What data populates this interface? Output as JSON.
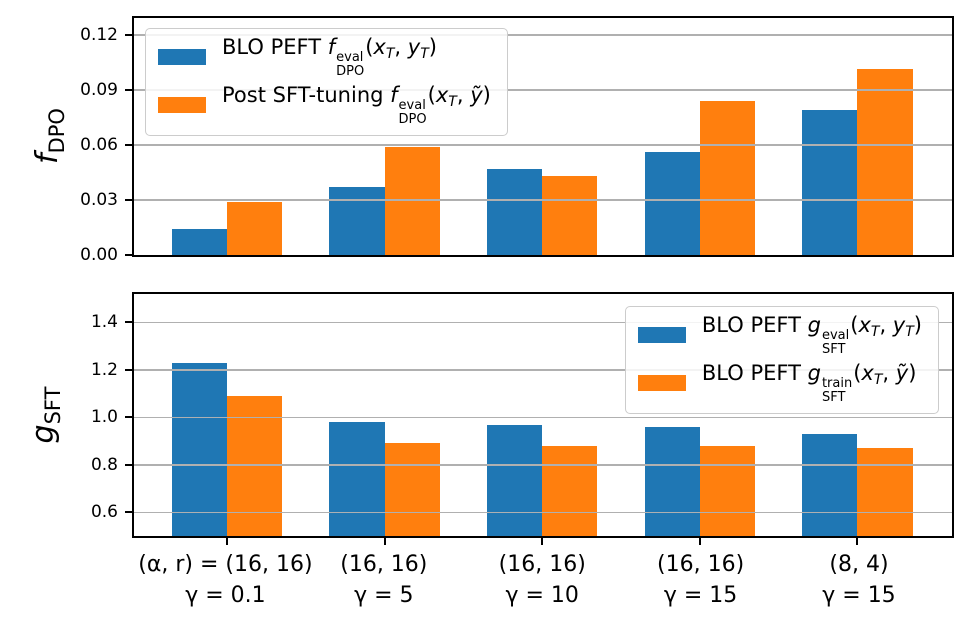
{
  "colors": {
    "series_blue": "#1f77b4",
    "series_orange": "#ff7f0e",
    "gridline": "#b0b0b0",
    "spine": "#000000",
    "legend_border": "#cccccc"
  },
  "categories": [
    {
      "line1": "(α, r) = (16, 16)",
      "line2": "γ = 0.1"
    },
    {
      "line1": "(16, 16)",
      "line2": "γ = 5"
    },
    {
      "line1": "(16, 16)",
      "line2": "γ = 10"
    },
    {
      "line1": "(16, 16)",
      "line2": "γ = 15"
    },
    {
      "line1": "(8, 4)",
      "line2": "γ = 15"
    }
  ],
  "chart_data": [
    {
      "type": "bar",
      "dom": "fdpo",
      "title": "",
      "ylabel": {
        "sym": "f",
        "sub": "DPO"
      },
      "ylim": [
        0,
        0.129
      ],
      "xlim": [
        -0.59,
        4.6
      ],
      "bar_width": 0.35,
      "grid": true,
      "show_xticks": false,
      "yticks": [
        {
          "v": 0.0,
          "label": "0.00"
        },
        {
          "v": 0.03,
          "label": "0.03"
        },
        {
          "v": 0.06,
          "label": "0.06"
        },
        {
          "v": 0.09,
          "label": "0.09"
        },
        {
          "v": 0.12,
          "label": "0.12"
        }
      ],
      "series": [
        {
          "name": "BLO PEFT f_DPO^eval(x_T, y_T)",
          "color": "#1f77b4",
          "values": [
            0.014,
            0.037,
            0.047,
            0.056,
            0.079
          ]
        },
        {
          "name": "Post SFT-tuning f_DPO^eval(x_T, ỹ)",
          "color": "#ff7f0e",
          "values": [
            0.029,
            0.059,
            0.043,
            0.084,
            0.101
          ]
        }
      ],
      "legend": {
        "position": "upper-left",
        "rows": [
          {
            "color": "#1f77b4",
            "tokens": [
              {
                "t": "text",
                "v": "BLO PEFT "
              },
              {
                "t": "i",
                "v": "f"
              },
              {
                "t": "stack",
                "sup": "eval",
                "sub": "DPO"
              },
              {
                "t": "text",
                "v": "("
              },
              {
                "t": "isub",
                "main": "x",
                "sub": "T"
              },
              {
                "t": "text",
                "v": ", "
              },
              {
                "t": "isub",
                "main": "y",
                "sub": "T"
              },
              {
                "t": "text",
                "v": ")"
              }
            ]
          },
          {
            "color": "#ff7f0e",
            "tokens": [
              {
                "t": "text",
                "v": "Post SFT-tuning "
              },
              {
                "t": "i",
                "v": "f"
              },
              {
                "t": "stack",
                "sup": "eval",
                "sub": "DPO"
              },
              {
                "t": "text",
                "v": "("
              },
              {
                "t": "isub",
                "main": "x",
                "sub": "T"
              },
              {
                "t": "text",
                "v": ", "
              },
              {
                "t": "isub",
                "main": "ỹ",
                "sub": ""
              },
              {
                "t": "text",
                "v": ")"
              }
            ]
          }
        ]
      }
    },
    {
      "type": "bar",
      "dom": "gsft",
      "title": "",
      "ylabel": {
        "sym": "g",
        "sub": "SFT"
      },
      "ylim": [
        0.5,
        1.52
      ],
      "xlim": [
        -0.59,
        4.6
      ],
      "bar_width": 0.35,
      "grid": true,
      "show_xticks": true,
      "yticks": [
        {
          "v": 0.6,
          "label": "0.6"
        },
        {
          "v": 0.8,
          "label": "0.8"
        },
        {
          "v": 1.0,
          "label": "1.0"
        },
        {
          "v": 1.2,
          "label": "1.2"
        },
        {
          "v": 1.4,
          "label": "1.4"
        }
      ],
      "series": [
        {
          "name": "BLO PEFT g_SFT^eval(x_T, y_T)",
          "color": "#1f77b4",
          "values": [
            1.23,
            0.98,
            0.97,
            0.96,
            0.93
          ]
        },
        {
          "name": "BLO PEFT g_SFT^train(x_T, ỹ)",
          "color": "#ff7f0e",
          "values": [
            1.09,
            0.89,
            0.88,
            0.88,
            0.87
          ]
        }
      ],
      "legend": {
        "position": "upper-right",
        "rows": [
          {
            "color": "#1f77b4",
            "tokens": [
              {
                "t": "text",
                "v": "BLO PEFT "
              },
              {
                "t": "i",
                "v": "g"
              },
              {
                "t": "stack",
                "sup": "eval",
                "sub": "SFT"
              },
              {
                "t": "text",
                "v": "("
              },
              {
                "t": "isub",
                "main": "x",
                "sub": "T"
              },
              {
                "t": "text",
                "v": ", "
              },
              {
                "t": "isub",
                "main": "y",
                "sub": "T"
              },
              {
                "t": "text",
                "v": ")"
              }
            ]
          },
          {
            "color": "#ff7f0e",
            "tokens": [
              {
                "t": "text",
                "v": "BLO PEFT "
              },
              {
                "t": "i",
                "v": "g"
              },
              {
                "t": "stack",
                "sup": "train",
                "sub": "SFT"
              },
              {
                "t": "text",
                "v": "("
              },
              {
                "t": "isub",
                "main": "x",
                "sub": "T"
              },
              {
                "t": "text",
                "v": ", "
              },
              {
                "t": "isub",
                "main": "ỹ",
                "sub": ""
              },
              {
                "t": "text",
                "v": ")"
              }
            ]
          }
        ]
      }
    }
  ]
}
